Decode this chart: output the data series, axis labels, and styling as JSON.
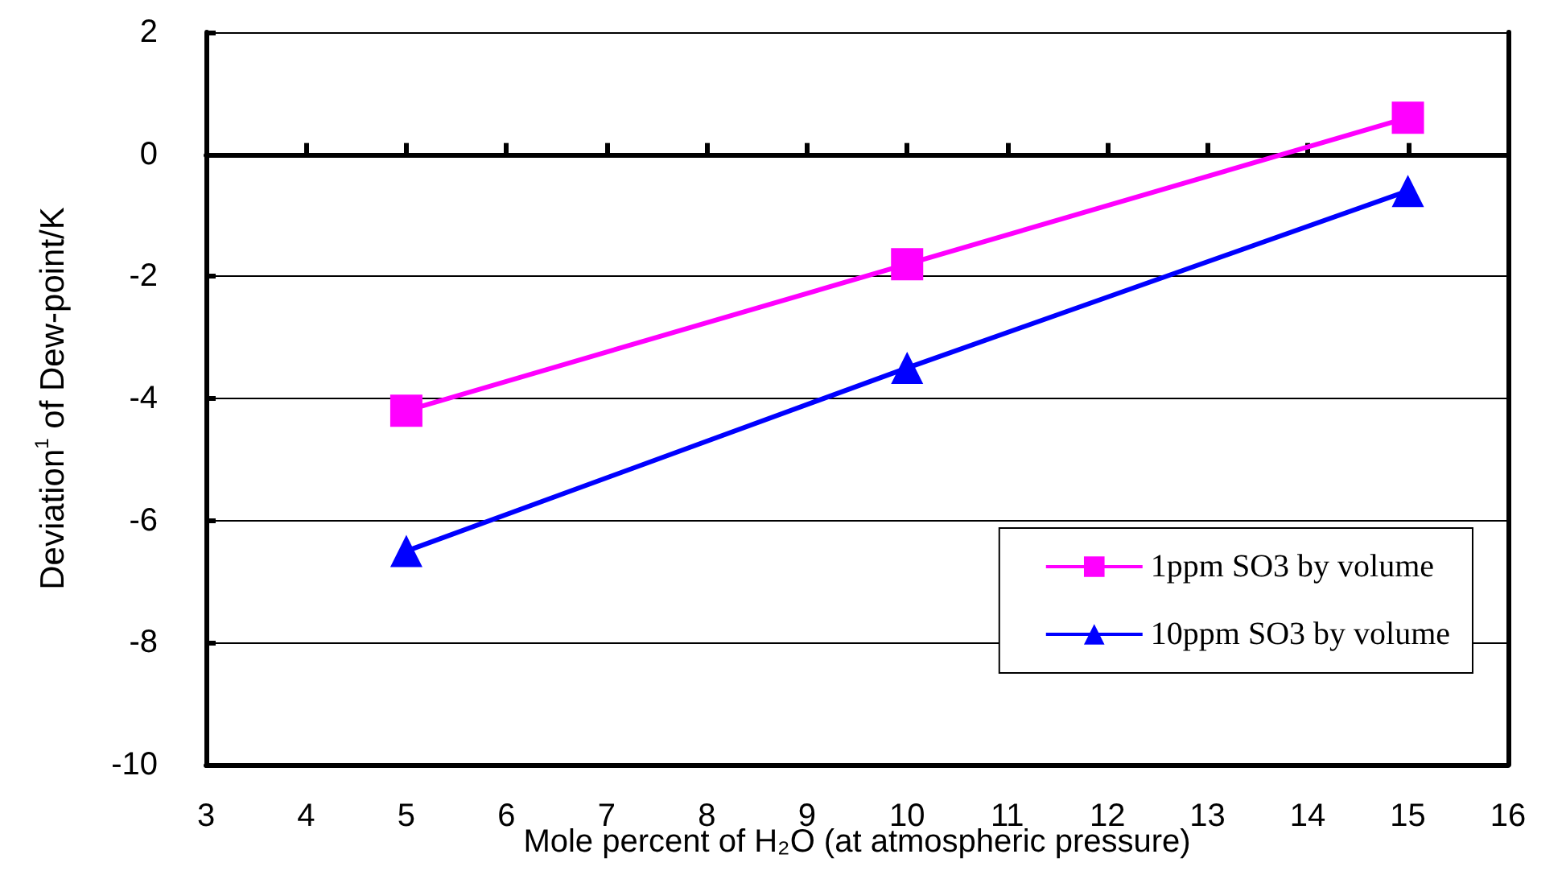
{
  "chart_data": {
    "type": "line",
    "xlabel": "Mole percent of H₂O (at atmospheric pressure)",
    "ylabel": "Deviation$^{1}$ of Dew-point/K",
    "x": [
      5,
      10,
      15
    ],
    "series": [
      {
        "name": "1ppm SO3 by volume",
        "color": "#ff00ff",
        "marker": "square",
        "values": [
          -4.2,
          -1.8,
          0.6
        ]
      },
      {
        "name": "10ppm SO3 by volume",
        "color": "#0000ff",
        "marker": "triangle",
        "values": [
          -6.5,
          -3.5,
          -0.6
        ]
      }
    ],
    "xlim": [
      3,
      16
    ],
    "xticks": [
      3,
      4,
      5,
      6,
      7,
      8,
      9,
      10,
      11,
      12,
      13,
      14,
      15,
      16
    ],
    "ylim": [
      -10,
      2
    ],
    "yticks": [
      -10,
      -8,
      -6,
      -4,
      -2,
      0,
      2
    ],
    "grid": "y",
    "legend": "bottom right",
    "line_style": "solid"
  }
}
